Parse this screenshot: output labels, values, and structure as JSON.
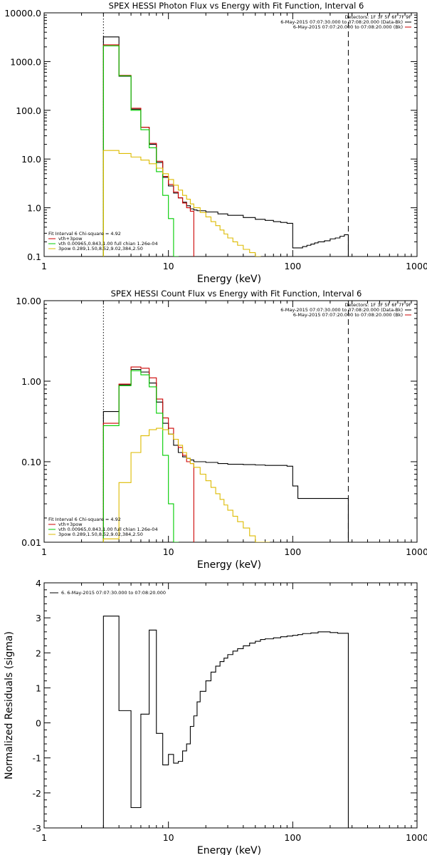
{
  "chart_data": [
    {
      "type": "line",
      "title": "SPEX HESSI Photon Flux vs Energy with Fit Function, Interval 6",
      "xlabel": "Energy (keV)",
      "ylabel": "",
      "x_scale": "log",
      "y_scale": "log",
      "xlim": [
        1,
        1000
      ],
      "ylim": [
        0.1,
        10000
      ],
      "x_ticks": [
        "1",
        "10",
        "100",
        "1000"
      ],
      "y_ticks": [
        "0.1",
        "1.0",
        "10.0",
        "100.0",
        "1000.0",
        "10000.0"
      ],
      "detectors": "Detectors: 1F 3F 5F 6F 7F 9F",
      "time_labels": [
        {
          "text": "6-May-2015 07:07:30.000 to 07:08:20.000 (Data-Bk)",
          "color": "#000000"
        },
        {
          "text": "6-May-2015 07:07:20.000 to 07:08:20.000 (Bk)",
          "color": "#cc0000"
        }
      ],
      "fit_text": [
        {
          "text": "Fit Interval 6   Chi-square = 4.92",
          "color": "#000000"
        },
        {
          "text": "vth+3pow",
          "color": "#cc0000"
        },
        {
          "text": "vth 0.00965,0.843,1.00  full chian 1.26e-04",
          "color": "#00cc00"
        },
        {
          "text": "3pow 0.289,1.50,8.52,9.02,384,2.50",
          "color": "#ddbb00"
        }
      ],
      "vlines": [
        {
          "x": 3,
          "style": "dotted"
        },
        {
          "x": 280,
          "style": "dashed"
        }
      ],
      "series": [
        {
          "name": "data",
          "color": "#000000",
          "points": [
            [
              3,
              3200
            ],
            [
              4,
              500
            ],
            [
              5,
              105
            ],
            [
              6,
              45
            ],
            [
              7,
              20
            ],
            [
              8,
              8.5
            ],
            [
              9,
              4.2
            ],
            [
              10,
              2.8
            ],
            [
              11,
              2
            ],
            [
              12,
              1.6
            ],
            [
              13,
              1.3
            ],
            [
              14,
              1.1
            ],
            [
              15,
              0.95
            ],
            [
              16,
              0.9
            ],
            [
              17,
              0.87
            ],
            [
              20,
              0.82
            ],
            [
              25,
              0.75
            ],
            [
              30,
              0.7
            ],
            [
              40,
              0.63
            ],
            [
              50,
              0.58
            ],
            [
              60,
              0.55
            ],
            [
              70,
              0.52
            ],
            [
              80,
              0.5
            ],
            [
              90,
              0.48
            ],
            [
              100,
              0.15
            ],
            [
              120,
              0.16
            ],
            [
              130,
              0.17
            ],
            [
              140,
              0.18
            ],
            [
              150,
              0.19
            ],
            [
              160,
              0.2
            ],
            [
              180,
              0.21
            ],
            [
              200,
              0.23
            ],
            [
              220,
              0.24
            ],
            [
              240,
              0.26
            ],
            [
              260,
              0.28
            ]
          ],
          "xmax": 280
        },
        {
          "name": "vth+3pow",
          "color": "#cc0000",
          "points": [
            [
              3,
              2200
            ],
            [
              4,
              520
            ],
            [
              5,
              110
            ],
            [
              6,
              45
            ],
            [
              7,
              21
            ],
            [
              8,
              9
            ],
            [
              9,
              4.4
            ],
            [
              10,
              3
            ],
            [
              11,
              2.1
            ],
            [
              12,
              1.6
            ],
            [
              13,
              1.25
            ],
            [
              14,
              1
            ],
            [
              15,
              0.85
            ]
          ],
          "xmax": 16
        },
        {
          "name": "vth",
          "color": "#00cc00",
          "points": [
            [
              3,
              2100
            ],
            [
              4,
              510
            ],
            [
              5,
              100
            ],
            [
              6,
              40
            ],
            [
              7,
              17
            ],
            [
              8,
              5.5
            ],
            [
              9,
              1.8
            ],
            [
              10,
              0.6
            ],
            [
              11,
              0.1
            ]
          ],
          "xmax": 12
        },
        {
          "name": "3pow",
          "color": "#ddbb00",
          "points": [
            [
              3,
              15
            ],
            [
              4,
              13
            ],
            [
              5,
              11
            ],
            [
              6,
              9.5
            ],
            [
              7,
              8
            ],
            [
              8,
              6.5
            ],
            [
              9,
              5
            ],
            [
              10,
              3.8
            ],
            [
              11,
              2.9
            ],
            [
              12,
              2.3
            ],
            [
              13,
              1.8
            ],
            [
              14,
              1.5
            ],
            [
              15,
              1.2
            ],
            [
              16,
              1
            ],
            [
              18,
              0.8
            ],
            [
              20,
              0.65
            ],
            [
              22,
              0.52
            ],
            [
              24,
              0.43
            ],
            [
              26,
              0.35
            ],
            [
              28,
              0.29
            ],
            [
              30,
              0.24
            ],
            [
              33,
              0.2
            ],
            [
              36,
              0.17
            ],
            [
              40,
              0.14
            ],
            [
              45,
              0.12
            ],
            [
              50,
              0.1
            ]
          ],
          "xmax": 55
        }
      ]
    },
    {
      "type": "line",
      "title": "SPEX HESSI Count Flux vs Energy with Fit Function, Interval 6",
      "xlabel": "Energy (keV)",
      "ylabel": "",
      "x_scale": "log",
      "y_scale": "log",
      "xlim": [
        1,
        1000
      ],
      "ylim": [
        0.01,
        10
      ],
      "x_ticks": [
        "1",
        "10",
        "100",
        "1000"
      ],
      "y_ticks": [
        "0.01",
        "0.10",
        "1.00",
        "10.00"
      ],
      "detectors": "Detectors: 1F 3F 5F 6F 7F 9F",
      "time_labels": [
        {
          "text": "6-May-2015 07:07:30.000 to 07:08:20.000 (Data-Bk)",
          "color": "#000000"
        },
        {
          "text": "6-May-2015 07:07:20.000 to 07:08:20.000 (Bk)",
          "color": "#cc0000"
        }
      ],
      "fit_text": [
        {
          "text": "Fit Interval 6   Chi-square = 4.92",
          "color": "#000000"
        },
        {
          "text": "vth+3pow",
          "color": "#cc0000"
        },
        {
          "text": "vth 0.00965,0.843,1.00  full chian 1.26e-04",
          "color": "#00cc00"
        },
        {
          "text": "3pow 0.289,1.50,8.52,9.02,384,2.50",
          "color": "#ddbb00"
        }
      ],
      "vlines": [
        {
          "x": 3,
          "style": "dotted"
        },
        {
          "x": 280,
          "style": "dashed"
        }
      ],
      "series": [
        {
          "name": "data",
          "color": "#000000",
          "points": [
            [
              3,
              0.42
            ],
            [
              4,
              0.9
            ],
            [
              5,
              1.4
            ],
            [
              6,
              1.3
            ],
            [
              7,
              0.95
            ],
            [
              8,
              0.55
            ],
            [
              9,
              0.3
            ],
            [
              10,
              0.22
            ],
            [
              11,
              0.16
            ],
            [
              12,
              0.13
            ],
            [
              13,
              0.115
            ],
            [
              14,
              0.11
            ],
            [
              15,
              0.105
            ],
            [
              16,
              0.1
            ],
            [
              20,
              0.098
            ],
            [
              25,
              0.095
            ],
            [
              30,
              0.093
            ],
            [
              40,
              0.092
            ],
            [
              50,
              0.091
            ],
            [
              60,
              0.09
            ],
            [
              70,
              0.09
            ],
            [
              80,
              0.09
            ],
            [
              90,
              0.088
            ],
            [
              100,
              0.05
            ],
            [
              110,
              0.035
            ]
          ],
          "xmax": 280
        },
        {
          "name": "vth+3pow",
          "color": "#cc0000",
          "points": [
            [
              3,
              0.3
            ],
            [
              4,
              0.92
            ],
            [
              5,
              1.5
            ],
            [
              6,
              1.45
            ],
            [
              7,
              1.1
            ],
            [
              8,
              0.6
            ],
            [
              9,
              0.35
            ],
            [
              10,
              0.26
            ],
            [
              11,
              0.19
            ],
            [
              12,
              0.15
            ],
            [
              13,
              0.12
            ],
            [
              14,
              0.1
            ],
            [
              15,
              0.095
            ]
          ],
          "xmax": 16
        },
        {
          "name": "vth",
          "color": "#00cc00",
          "points": [
            [
              3,
              0.28
            ],
            [
              4,
              0.88
            ],
            [
              5,
              1.35
            ],
            [
              6,
              1.2
            ],
            [
              7,
              0.85
            ],
            [
              8,
              0.4
            ],
            [
              9,
              0.12
            ],
            [
              10,
              0.03
            ],
            [
              11,
              0.01
            ]
          ],
          "xmax": 12
        },
        {
          "name": "3pow",
          "color": "#ddbb00",
          "points": [
            [
              3,
              0.011
            ],
            [
              4,
              0.055
            ],
            [
              5,
              0.13
            ],
            [
              6,
              0.21
            ],
            [
              7,
              0.25
            ],
            [
              8,
              0.26
            ],
            [
              9,
              0.25
            ],
            [
              10,
              0.22
            ],
            [
              11,
              0.19
            ],
            [
              12,
              0.16
            ],
            [
              13,
              0.13
            ],
            [
              14,
              0.11
            ],
            [
              15,
              0.095
            ],
            [
              16,
              0.085
            ],
            [
              18,
              0.07
            ],
            [
              20,
              0.058
            ],
            [
              22,
              0.048
            ],
            [
              24,
              0.04
            ],
            [
              26,
              0.034
            ],
            [
              28,
              0.029
            ],
            [
              30,
              0.025
            ],
            [
              33,
              0.021
            ],
            [
              36,
              0.018
            ],
            [
              40,
              0.015
            ],
            [
              45,
              0.012
            ],
            [
              50,
              0.01
            ]
          ],
          "xmax": 65
        }
      ]
    },
    {
      "type": "line",
      "title": "",
      "xlabel": "Energy (keV)",
      "ylabel": "Normalized Residuals (sigma)",
      "x_scale": "log",
      "y_scale": "linear",
      "xlim": [
        1,
        1000
      ],
      "ylim": [
        -3,
        4
      ],
      "x_ticks": [
        "1",
        "10",
        "100",
        "1000"
      ],
      "y_ticks": [
        "-3",
        "-2",
        "-1",
        "0",
        "1",
        "2",
        "3",
        "4"
      ],
      "legend_text": "6. 6-May-2015 07:07:30.000 to 07:08:20.000",
      "series": [
        {
          "name": "residuals",
          "color": "#000000",
          "points": [
            [
              3,
              3.05
            ],
            [
              4,
              0.35
            ],
            [
              5,
              -2.42
            ],
            [
              6,
              0.25
            ],
            [
              7,
              2.65
            ],
            [
              8,
              -0.3
            ],
            [
              9,
              -1.2
            ],
            [
              10,
              -0.9
            ],
            [
              11,
              -1.15
            ],
            [
              12,
              -1.1
            ],
            [
              13,
              -0.8
            ],
            [
              14,
              -0.6
            ],
            [
              15,
              -0.1
            ],
            [
              16,
              0.2
            ],
            [
              17,
              0.6
            ],
            [
              18,
              0.9
            ],
            [
              20,
              1.2
            ],
            [
              22,
              1.45
            ],
            [
              24,
              1.62
            ],
            [
              26,
              1.75
            ],
            [
              28,
              1.85
            ],
            [
              30,
              1.95
            ],
            [
              33,
              2.05
            ],
            [
              36,
              2.12
            ],
            [
              40,
              2.2
            ],
            [
              45,
              2.28
            ],
            [
              50,
              2.33
            ],
            [
              55,
              2.38
            ],
            [
              60,
              2.4
            ],
            [
              70,
              2.43
            ],
            [
              80,
              2.46
            ],
            [
              90,
              2.48
            ],
            [
              100,
              2.5
            ],
            [
              110,
              2.52
            ],
            [
              120,
              2.55
            ],
            [
              140,
              2.57
            ],
            [
              160,
              2.6
            ],
            [
              180,
              2.6
            ],
            [
              200,
              2.58
            ],
            [
              230,
              2.56
            ]
          ],
          "xmax": 280
        }
      ]
    }
  ]
}
